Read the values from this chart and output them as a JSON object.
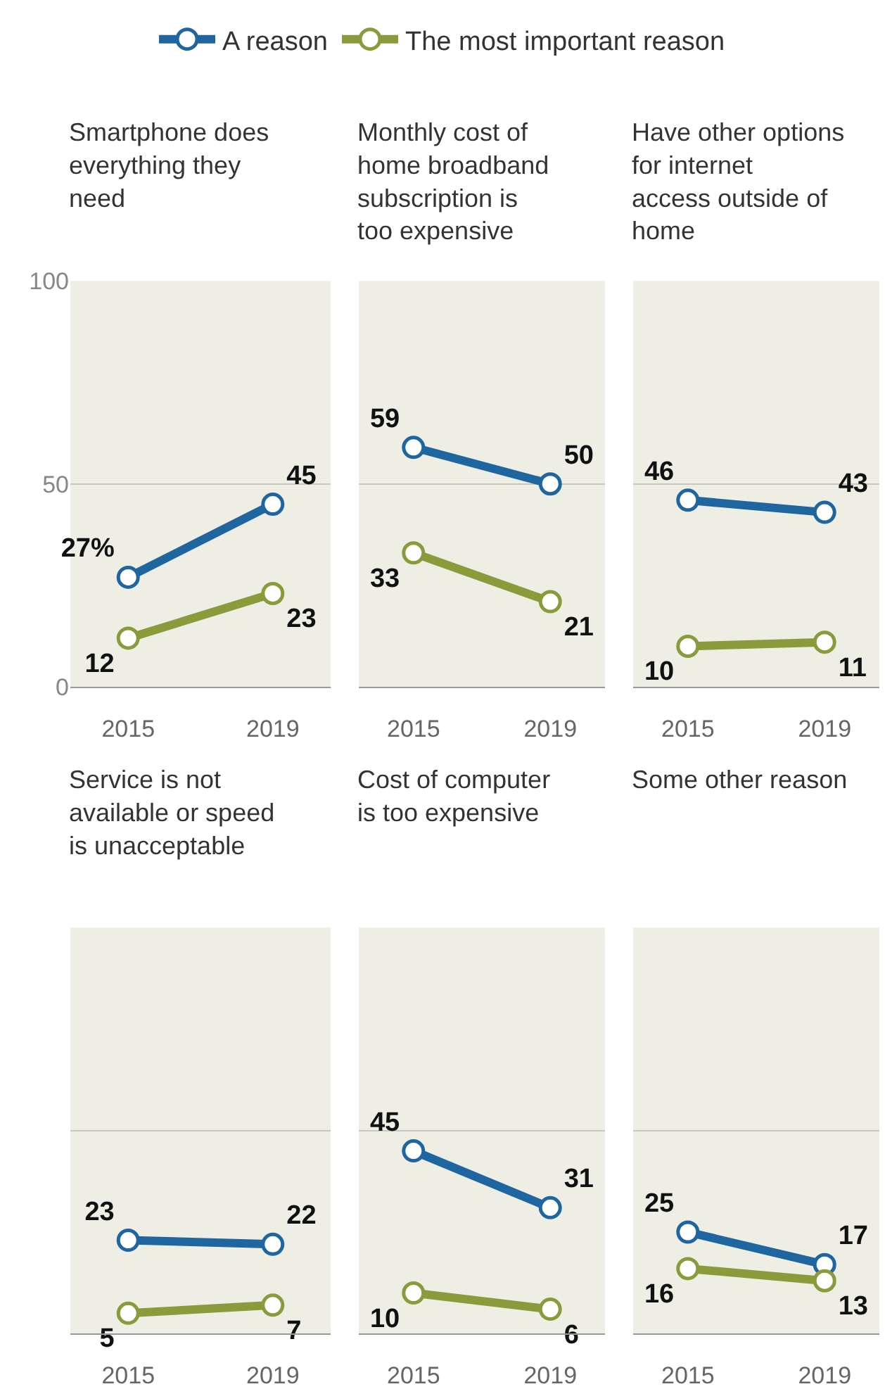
{
  "chart_data": [
    {
      "type": "line",
      "title": "Smartphone does everything they need",
      "categories": [
        "2015",
        "2019"
      ],
      "ylim": [
        0,
        100
      ],
      "yticks": [
        0,
        50,
        100
      ],
      "grid": "y",
      "legend": "top",
      "marker": "circle",
      "line_style": "solid",
      "series": [
        {
          "name": "A reason",
          "color": "#1f66a0",
          "values": [
            27,
            45
          ],
          "value_labels": [
            "27%",
            "45"
          ]
        },
        {
          "name": "The most important reason",
          "color": "#8a9b3c",
          "values": [
            12,
            23
          ],
          "value_labels": [
            "12",
            "23"
          ]
        }
      ]
    },
    {
      "type": "line",
      "title": "Monthly cost of home broadband subscription is too expensive",
      "categories": [
        "2015",
        "2019"
      ],
      "ylim": [
        0,
        100
      ],
      "yticks": [
        0,
        50,
        100
      ],
      "grid": "y",
      "tick_labels": "x",
      "marker": "circle",
      "line_style": "solid",
      "series": [
        {
          "color": "#1f66a0",
          "values": [
            59,
            50
          ],
          "value_labels": [
            "59",
            "50"
          ]
        },
        {
          "color": "#8a9b3c",
          "values": [
            33,
            21
          ],
          "value_labels": [
            "33",
            "21"
          ]
        }
      ]
    },
    {
      "type": "line",
      "title": "Have other options for internet access outside of home",
      "categories": [
        "2015",
        "2019"
      ],
      "ylim": [
        0,
        100
      ],
      "yticks": [
        0,
        50,
        100
      ],
      "grid": "y",
      "tick_labels": "x",
      "marker": "circle",
      "line_style": "solid",
      "series": [
        {
          "color": "#1f66a0",
          "values": [
            46,
            43
          ],
          "value_labels": [
            "46",
            "43"
          ]
        },
        {
          "color": "#8a9b3c",
          "values": [
            10,
            11
          ],
          "value_labels": [
            "10",
            "11"
          ]
        }
      ]
    },
    {
      "type": "line",
      "title": "Service is not available or speed is unacceptable",
      "categories": [
        "2015",
        "2019"
      ],
      "ylim": [
        0,
        100
      ],
      "yticks": [
        0,
        50,
        100
      ],
      "grid": "y",
      "tick_labels": "x",
      "marker": "circle",
      "line_style": "solid",
      "series": [
        {
          "color": "#1f66a0",
          "values": [
            23,
            22
          ],
          "value_labels": [
            "23",
            "22"
          ]
        },
        {
          "color": "#8a9b3c",
          "values": [
            5,
            7
          ],
          "value_labels": [
            "5",
            "7"
          ]
        }
      ]
    },
    {
      "type": "line",
      "title": "Cost of computer is too expensive",
      "categories": [
        "2015",
        "2019"
      ],
      "ylim": [
        0,
        100
      ],
      "yticks": [
        0,
        50,
        100
      ],
      "grid": "y",
      "tick_labels": "x",
      "marker": "circle",
      "line_style": "solid",
      "series": [
        {
          "color": "#1f66a0",
          "values": [
            45,
            31
          ],
          "value_labels": [
            "45",
            "31"
          ]
        },
        {
          "color": "#8a9b3c",
          "values": [
            10,
            6
          ],
          "value_labels": [
            "10",
            "6"
          ]
        }
      ]
    },
    {
      "type": "line",
      "title": "Some other reason",
      "categories": [
        "2015",
        "2019"
      ],
      "ylim": [
        0,
        100
      ],
      "yticks": [
        0,
        50,
        100
      ],
      "grid": "y",
      "tick_labels": "x",
      "marker": "circle",
      "line_style": "solid",
      "series": [
        {
          "color": "#1f66a0",
          "values": [
            25,
            17
          ],
          "value_labels": [
            "25",
            "17"
          ]
        },
        {
          "color": "#8a9b3c",
          "values": [
            16,
            13
          ],
          "value_labels": [
            "16",
            "13"
          ]
        }
      ]
    }
  ]
}
